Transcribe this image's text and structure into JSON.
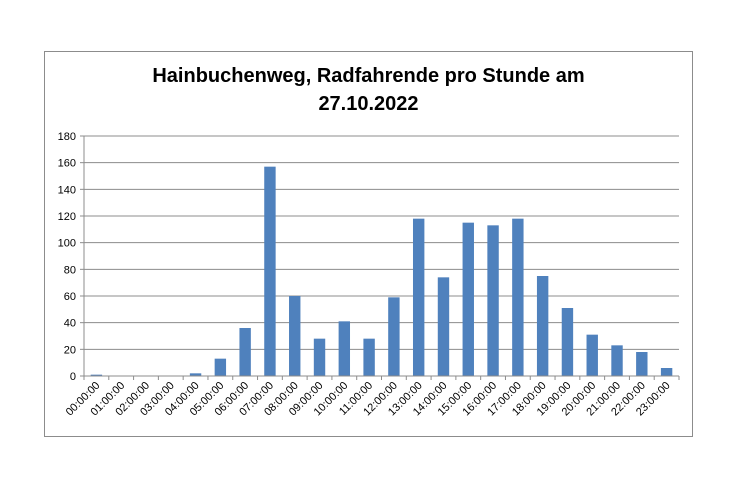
{
  "chart_data": {
    "type": "bar",
    "title": [
      "Hainbuchenweg, Radfahrende pro Stunde am",
      "27.10.2022"
    ],
    "xlabel": "",
    "ylabel": "",
    "categories": [
      "00:00:00",
      "01:00:00",
      "02:00:00",
      "03:00:00",
      "04:00:00",
      "05:00:00",
      "06:00:00",
      "07:00:00",
      "08:00:00",
      "09:00:00",
      "10:00:00",
      "11:00:00",
      "12:00:00",
      "13:00:00",
      "14:00:00",
      "15:00:00",
      "16:00:00",
      "17:00:00",
      "18:00:00",
      "19:00:00",
      "20:00:00",
      "21:00:00",
      "22:00:00",
      "23:00:00"
    ],
    "values": [
      1,
      0,
      0,
      0,
      2,
      13,
      36,
      157,
      60,
      28,
      41,
      28,
      59,
      118,
      74,
      115,
      113,
      118,
      75,
      51,
      31,
      23,
      18,
      6
    ],
    "ylim": [
      0,
      180
    ],
    "yticks": [
      0,
      20,
      40,
      60,
      80,
      100,
      120,
      140,
      160,
      180
    ],
    "grid": true,
    "legend": "none",
    "bar_color": "#4f81bd",
    "grid_color": "#8c8c8c"
  }
}
